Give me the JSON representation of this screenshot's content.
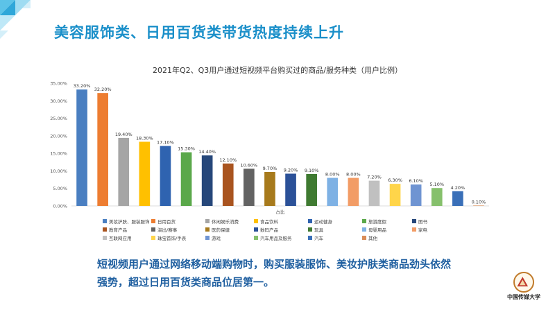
{
  "slide": {
    "title": "美容服饰类、日用百货类带货热度持续上升",
    "summary_line1": "短视频用户通过网络移动端购物时，购买服装服饰、美妆护肤类商品劲头依然",
    "summary_line2": "强势，超过日用百货类商品位居第一。",
    "logo_text": "中国传媒大学"
  },
  "chart_data": {
    "type": "bar",
    "title": "2021年Q2、Q3用户通过短视频平台购买过的商品/服务种类（用户比例）",
    "xlabel": "占比",
    "ylabel": "",
    "ylim": [
      0,
      35
    ],
    "yticks": [
      "0.00%",
      "5.00%",
      "10.00%",
      "15.00%",
      "20.00%",
      "25.00%",
      "30.00%",
      "35.00%"
    ],
    "grid": false,
    "legend_position": "bottom",
    "categories": [
      "美妆护肤、服装服饰",
      "日用百货",
      "休闲娱乐消费",
      "食品饮料",
      "运动健身",
      "旅游度假",
      "图书",
      "教育产品",
      "演出/赛事",
      "医药保健",
      "数码产品",
      "玩具",
      "母婴用品",
      "家电",
      "互联网应用",
      "珠宝首饰/手表",
      "游戏",
      "汽车用品及服务",
      "汽车",
      "其他"
    ],
    "values": [
      33.2,
      32.2,
      19.4,
      18.3,
      17.1,
      15.3,
      14.4,
      12.1,
      10.6,
      9.7,
      9.2,
      9.1,
      8.0,
      8.0,
      7.2,
      6.3,
      6.1,
      5.1,
      4.2,
      0.1
    ],
    "value_labels": [
      "33.20%",
      "32.20%",
      "19.40%",
      "18.30%",
      "17.10%",
      "15.30%",
      "14.40%",
      "12.10%",
      "10.60%",
      "9.70%",
      "9.20%",
      "9.10%",
      "8.00%",
      "8.00%",
      "7.20%",
      "6.30%",
      "6.10%",
      "5.10%",
      "4.20%",
      "0.10%"
    ],
    "colors": [
      "#4a7fc1",
      "#ed7d31",
      "#a5a5a5",
      "#ffc000",
      "#2f63b0",
      "#5aa84a",
      "#26477a",
      "#a9541f",
      "#636363",
      "#a77a1c",
      "#2b5198",
      "#3f7a31",
      "#7eb1e4",
      "#f29c66",
      "#c0c0c0",
      "#ffd54a",
      "#6f94d2",
      "#86c06c",
      "#3a6fb8",
      "#d98c57"
    ]
  }
}
